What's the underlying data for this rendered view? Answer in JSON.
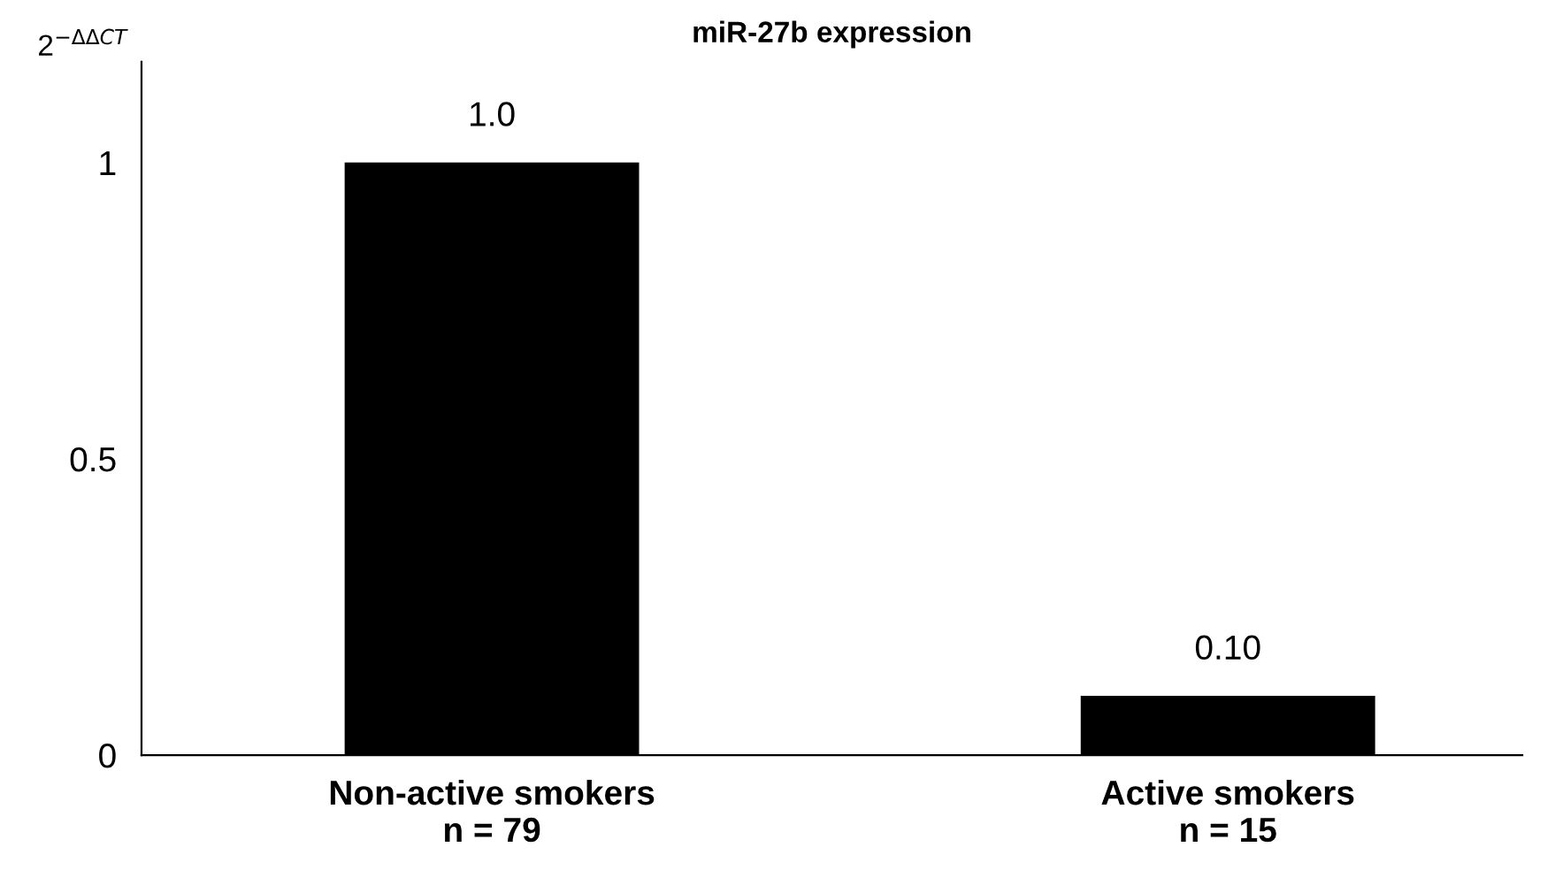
{
  "chart_data": {
    "type": "bar",
    "title": "miR-27b expression",
    "ylabel": "2$^{−ΔΔCT}$",
    "categories": [
      "Non-active smokers\nn = 79",
      "Active smokers\nn = 15"
    ],
    "values": [
      1.0,
      0.1
    ],
    "value_labels": [
      "1.0",
      "0.10"
    ],
    "color": "#000000",
    "ylim": [
      0,
      1.17
    ],
    "yticks": [
      0,
      0.5,
      1
    ],
    "grid": false,
    "legend": false
  }
}
